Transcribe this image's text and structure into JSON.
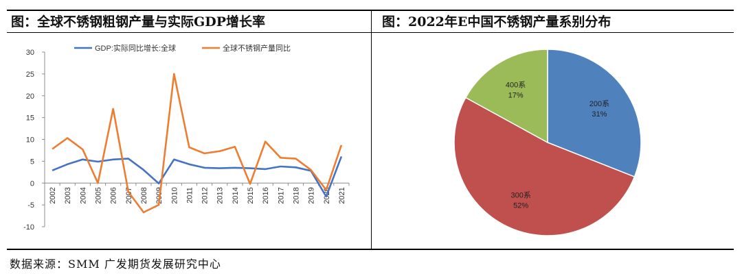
{
  "left_panel": {
    "title": "图：全球不锈钢粗钢产量与实际GDP增长率"
  },
  "right_panel": {
    "title": "图：2022年E中国不锈钢产量系别分布"
  },
  "source": "数据来源：SMM  广发期货发展研究中心",
  "chart_data": [
    {
      "type": "line",
      "x": [
        "2002",
        "2003",
        "2004",
        "2005",
        "2006",
        "2007",
        "2008",
        "2009",
        "2010",
        "2011",
        "2012",
        "2013",
        "2014",
        "2015",
        "2016",
        "2017",
        "2018",
        "2019",
        "2020",
        "2021"
      ],
      "ylim": [
        -10,
        30
      ],
      "yticks": [
        -10,
        -5,
        0,
        5,
        10,
        15,
        20,
        25,
        30
      ],
      "grid": false,
      "legend_position": "top",
      "series": [
        {
          "name": "GDP:实际同比增长:全球",
          "color": "#4472c4",
          "values": [
            2.9,
            4.3,
            5.4,
            4.9,
            5.4,
            5.6,
            3.0,
            -0.1,
            5.4,
            4.3,
            3.5,
            3.4,
            3.5,
            3.4,
            3.2,
            3.8,
            3.6,
            2.8,
            -3.1,
            6.1
          ]
        },
        {
          "name": "全球不锈钢产量同比",
          "color": "#ed7d31",
          "values": [
            7.8,
            10.3,
            7.7,
            0.0,
            17.0,
            -2.0,
            -6.7,
            -5.0,
            25.0,
            8.2,
            6.8,
            7.3,
            8.3,
            -0.2,
            9.5,
            5.8,
            5.6,
            3.0,
            -1.6,
            8.7
          ]
        }
      ]
    },
    {
      "type": "pie",
      "slices": [
        {
          "label": "200系",
          "percent_label": "31%",
          "value": 31,
          "color": "#4f81bd"
        },
        {
          "label": "300系",
          "percent_label": "52%",
          "value": 52,
          "color": "#c0504d"
        },
        {
          "label": "400系",
          "percent_label": "17%",
          "value": 17,
          "color": "#9bbb59"
        }
      ]
    }
  ]
}
